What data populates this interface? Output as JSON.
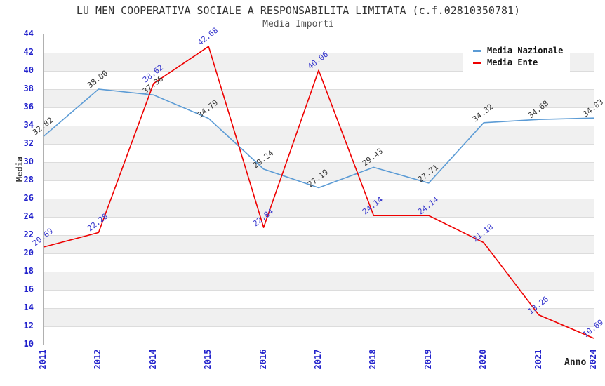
{
  "header": {
    "title": "LU MEN COOPERATIVA SOCIALE A RESPONSABILITA LIMITATA (c.f.02810350781)",
    "subtitle": "Media Importi"
  },
  "axes": {
    "y_title": "Media",
    "x_title": "Anno",
    "yticks": [
      10,
      12,
      14,
      16,
      18,
      20,
      22,
      24,
      26,
      28,
      30,
      32,
      34,
      36,
      38,
      40,
      42,
      44
    ],
    "tick_color": "#2222cc"
  },
  "style": {
    "band_color": "#f0f0f0",
    "gridline_color": "#dcdcdc",
    "plot_border_color": "#b0b0b0"
  },
  "chart_data": {
    "type": "line",
    "title": "Media Importi",
    "xlabel": "Anno",
    "ylabel": "Media",
    "ylim": [
      10,
      44
    ],
    "ytick_step": 2,
    "grid": true,
    "legend_position": "top-right",
    "categories": [
      "2011",
      "2012",
      "2014",
      "2015",
      "2016",
      "2017",
      "2018",
      "2019",
      "2020",
      "2021",
      "2024"
    ],
    "series": [
      {
        "name": "Media Nazionale",
        "color": "#5b9bd5",
        "label_color": "#333333",
        "values": [
          32.82,
          38.0,
          37.36,
          34.79,
          29.24,
          27.19,
          29.43,
          27.71,
          34.32,
          34.68,
          34.83
        ]
      },
      {
        "name": "Media Ente",
        "color": "#ee0000",
        "label_color": "#3333cc",
        "values": [
          20.69,
          22.28,
          38.62,
          42.68,
          22.84,
          40.06,
          24.14,
          24.14,
          21.18,
          13.26,
          10.69
        ]
      }
    ]
  }
}
